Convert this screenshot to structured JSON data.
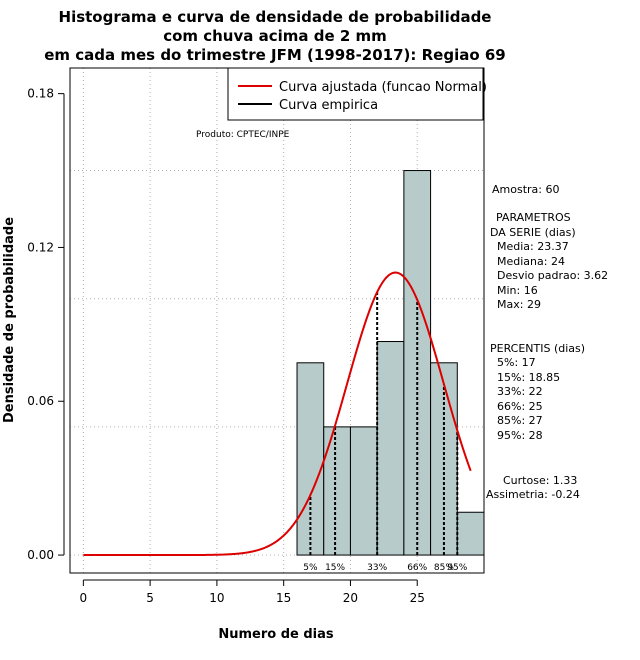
{
  "chart_data": {
    "type": "histogram",
    "title_lines": [
      "Histograma e curva de densidade de probabilidade",
      "com chuva acima de 2 mm",
      "em cada mes do trimestre JFM (1998-2017): Regiao 69"
    ],
    "xlabel": "Numero de dias",
    "ylabel": "Densidade de probabilidade",
    "xlim": [
      -1,
      30
    ],
    "ylim": [
      -0.007,
      0.19
    ],
    "x_ticks": [
      0,
      5,
      10,
      15,
      20,
      25
    ],
    "y_ticks": [
      0.0,
      0.06,
      0.12,
      0.18
    ],
    "y_tick_labels": [
      "0.00",
      "0.06",
      "0.12",
      "0.18"
    ],
    "bins": [
      {
        "start": 16,
        "end": 18,
        "density": 0.075
      },
      {
        "start": 18,
        "end": 20,
        "density": 0.05
      },
      {
        "start": 20,
        "end": 22,
        "density": 0.05
      },
      {
        "start": 22,
        "end": 24,
        "density": 0.0833
      },
      {
        "start": 24,
        "end": 26,
        "density": 0.15
      },
      {
        "start": 26,
        "end": 28,
        "density": 0.075
      },
      {
        "start": 28,
        "end": 30,
        "density": 0.0167
      }
    ],
    "bar_color": "#b7cbcb",
    "normal_curve": {
      "mean": 23.37,
      "sd": 3.62,
      "x_range": [
        0,
        29
      ],
      "color": "#dd0000"
    },
    "percentile_lines": [
      {
        "x": 17,
        "label": "5%"
      },
      {
        "x": 18.85,
        "label": "15%"
      },
      {
        "x": 22,
        "label": "33%"
      },
      {
        "x": 25,
        "label": "66%"
      },
      {
        "x": 27,
        "label": "85%"
      },
      {
        "x": 28,
        "label": "95%"
      }
    ],
    "legend": {
      "position": "top-right",
      "entries": [
        {
          "label": "Curva ajustada (funcao Normal)",
          "color": "#dd0000"
        },
        {
          "label": "Curva empirica",
          "color": "#000000"
        }
      ]
    },
    "product_label": "Produto: CPTEC/INPE",
    "stats": {
      "amostra": "Amostra: 60",
      "param_title_1": "PARAMETROS",
      "param_title_2": "DA SERIE (dias)",
      "media": "Media: 23.37",
      "mediana": "Mediana: 24",
      "desvio": "Desvio padrao: 3.62",
      "min": "Min: 16",
      "max": "Max: 29",
      "perc_title": "PERCENTIS (dias)",
      "p5": "5%: 17",
      "p15": "15%: 18.85",
      "p33": "33%: 22",
      "p66": "66%: 25",
      "p85": "85%: 27",
      "p95": "95%: 28",
      "curtose": "Curtose: 1.33",
      "assimetria": "Assimetria: -0.24"
    }
  }
}
